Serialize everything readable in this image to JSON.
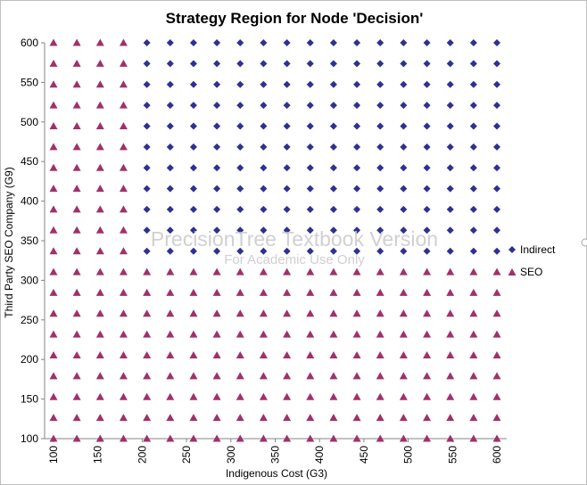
{
  "chart_data": {
    "type": "scatter",
    "title": "Strategy Region for Node 'Decision'",
    "xlabel": "Indigenous Cost (G3)",
    "ylabel": "Third Party SEO Company (G9)",
    "xlim": [
      100,
      600
    ],
    "ylim": [
      100,
      600
    ],
    "x_ticks": [
      100,
      150,
      200,
      250,
      300,
      350,
      400,
      450,
      500,
      550,
      600
    ],
    "y_ticks": [
      100,
      150,
      200,
      250,
      300,
      350,
      400,
      450,
      500,
      550,
      600
    ],
    "grid": false,
    "legend": "right",
    "x_values": [
      100,
      126.3,
      152.6,
      178.9,
      205.3,
      231.6,
      257.9,
      284.2,
      310.5,
      336.8,
      363.2,
      389.5,
      415.8,
      442.1,
      468.4,
      494.7,
      521.1,
      547.4,
      573.7,
      600
    ],
    "y_values": [
      100,
      126.3,
      152.6,
      178.9,
      205.3,
      231.6,
      257.9,
      284.2,
      310.5,
      336.8,
      363.2,
      389.5,
      415.8,
      442.1,
      468.4,
      494.7,
      521.1,
      547.4,
      573.7,
      600
    ],
    "decision_rule": "Indirect when Indigenous Cost > 190 and Third Party SEO Company > 325; otherwise SEO",
    "series": [
      {
        "name": "Indirect",
        "marker": "diamond",
        "color": "#2E3192"
      },
      {
        "name": "SEO",
        "marker": "triangle",
        "color": "#A0306A"
      }
    ]
  },
  "watermark": {
    "line1": "PrecisionTree Textbook Version",
    "line2": "For Academic Use Only"
  }
}
